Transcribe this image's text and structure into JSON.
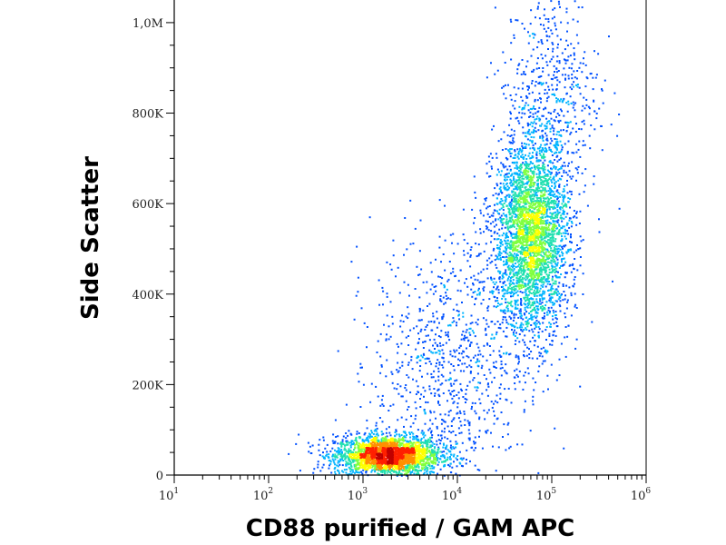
{
  "chart_data": {
    "type": "scatter",
    "title": "",
    "xlabel": "CD88 purified / GAM APC",
    "ylabel": "Side Scatter",
    "x_scale": "log",
    "xlim": [
      10,
      1000000
    ],
    "ylim": [
      0,
      1050000
    ],
    "x_ticks": [
      {
        "base": "10",
        "exp": "1",
        "value": 10
      },
      {
        "base": "10",
        "exp": "2",
        "value": 100
      },
      {
        "base": "10",
        "exp": "3",
        "value": 1000
      },
      {
        "base": "10",
        "exp": "4",
        "value": 10000
      },
      {
        "base": "10",
        "exp": "5",
        "value": 100000
      },
      {
        "base": "10",
        "exp": "6",
        "value": 1000000
      }
    ],
    "y_ticks": [
      {
        "label": "0",
        "value": 0
      },
      {
        "label": "200K",
        "value": 200000
      },
      {
        "label": "400K",
        "value": 400000
      },
      {
        "label": "600K",
        "value": 600000
      },
      {
        "label": "800K",
        "value": 800000
      },
      {
        "label": "1,0M",
        "value": 1000000
      }
    ],
    "density_colormap": [
      "#0000c8",
      "#0050ff",
      "#00b4ff",
      "#20e0b0",
      "#80ff40",
      "#ffff00",
      "#ff9000",
      "#ff2000",
      "#c00000"
    ],
    "populations": [
      {
        "name": "",
        "x_center": 1800,
        "y_center": 45000,
        "x_spread_log": 0.28,
        "y_spread": 22000,
        "count": 2600
      },
      {
        "name": "",
        "x_center": 60000,
        "y_center": 530000,
        "x_spread_log": 0.2,
        "y_spread": 110000,
        "count": 3400
      },
      {
        "name": "",
        "x_center": 8000,
        "y_center": 250000,
        "x_spread_log": 0.4,
        "y_spread": 140000,
        "count": 900
      },
      {
        "name": "",
        "x_center": 100000,
        "y_center": 850000,
        "x_spread_log": 0.25,
        "y_spread": 120000,
        "count": 500
      }
    ]
  }
}
